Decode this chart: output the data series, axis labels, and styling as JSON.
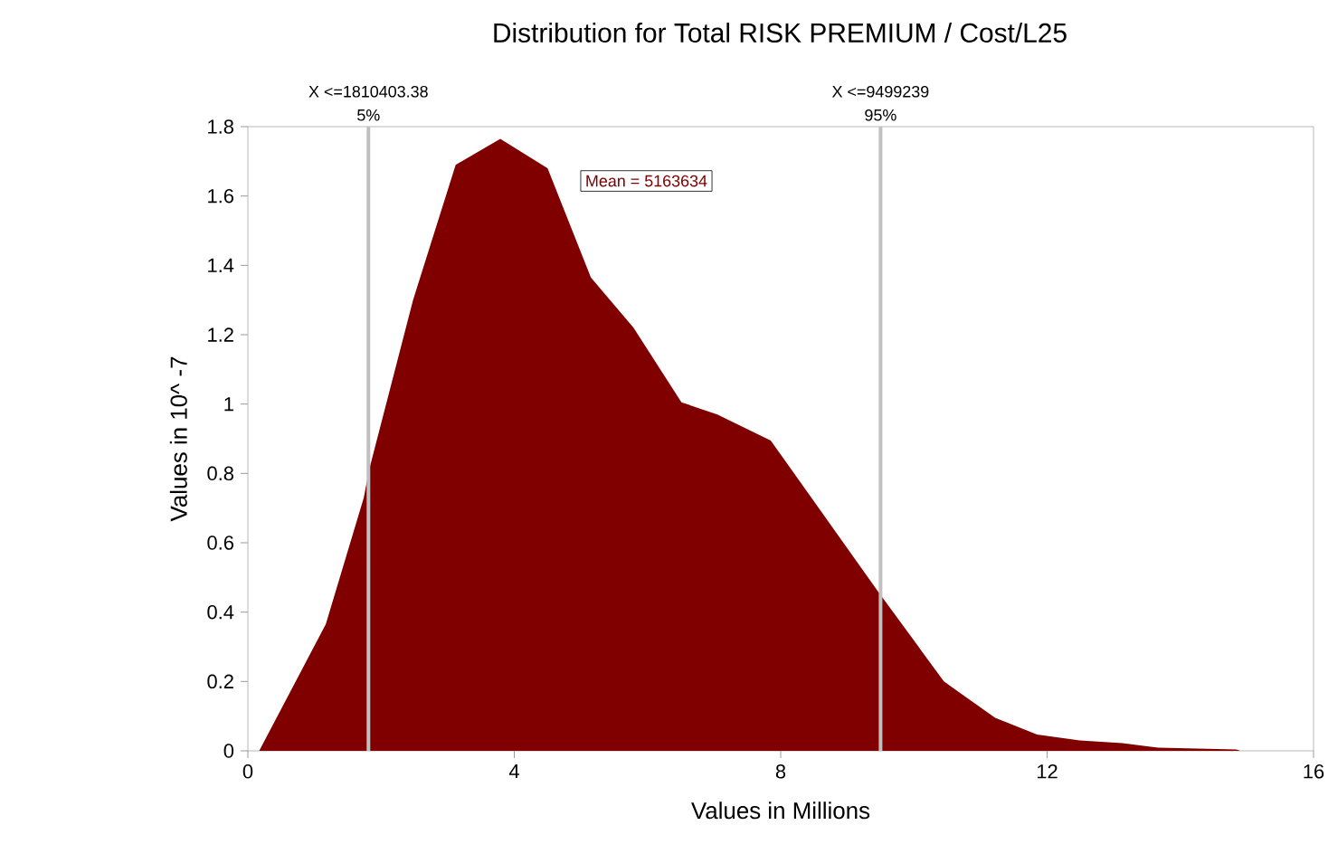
{
  "chart_data": {
    "type": "area",
    "title": "Distribution for Total RISK PREMIUM / Cost/L25",
    "xlabel": "Values in Millions",
    "ylabel": "Values in 10^ -7",
    "x": [
      0.17,
      1.17,
      1.74,
      1.82,
      2.48,
      3.12,
      3.79,
      4.5,
      5.15,
      5.79,
      6.51,
      7.05,
      7.85,
      9.46,
      10.45,
      11.22,
      11.85,
      12.49,
      13.13,
      13.67,
      14.84,
      14.9
    ],
    "series": [
      {
        "color": "#800000",
        "values": [
          0,
          0.365,
          0.73,
          0.81,
          1.3,
          1.69,
          1.765,
          1.68,
          1.365,
          1.22,
          1.005,
          0.97,
          0.895,
          0.46,
          0.2,
          0.095,
          0.047,
          0.03,
          0.022,
          0.009,
          0.004,
          0
        ]
      }
    ],
    "xlim": [
      0,
      16
    ],
    "xticks": [
      0,
      4,
      8,
      12,
      16
    ],
    "ylim": [
      0,
      1.8
    ],
    "yticks": [
      0,
      0.2,
      0.4,
      0.6,
      0.8,
      1,
      1.2,
      1.4,
      1.6,
      1.8
    ],
    "ref_lines": [
      {
        "axis": "x",
        "value": 1.81040338,
        "label": "X <=1810403.38",
        "color": "#c0c0c0"
      },
      {
        "axis": "x",
        "value": 9.499239,
        "label": "X <=9499239",
        "color": "#c0c0c0"
      }
    ],
    "annotations": [
      {
        "text": "5%",
        "x": 1.81040338,
        "y": 1.8
      },
      {
        "text": "95%",
        "x": 9.499239,
        "y": 1.8
      },
      "Mean = 5163634"
    ],
    "grid": false
  }
}
